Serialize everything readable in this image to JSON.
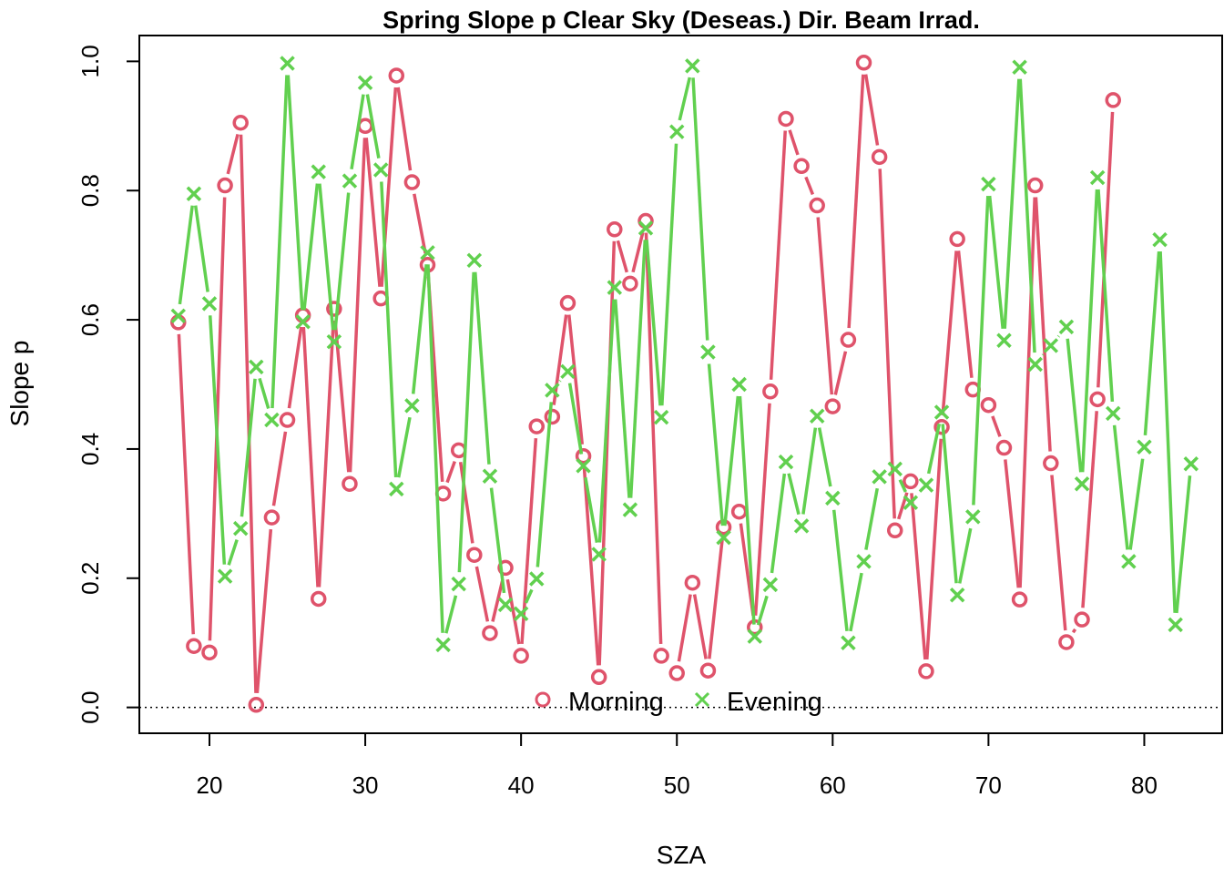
{
  "chart_data": {
    "type": "line",
    "title": "Spring Slope p Clear Sky (Deseas.) Dir. Beam Irrad.",
    "xlabel": "SZA",
    "ylabel": "Slope p",
    "xlim": [
      15.5,
      85
    ],
    "ylim": [
      -0.04,
      1.04
    ],
    "x_ticks": [
      "20",
      "30",
      "40",
      "50",
      "60",
      "70",
      "80"
    ],
    "y_ticks": [
      "0.0",
      "0.2",
      "0.4",
      "0.6",
      "0.8",
      "1.0"
    ],
    "reference_line": {
      "y": 0,
      "style": "dotted"
    },
    "legend": {
      "position": "bottom-center",
      "entries": [
        "Morning",
        "Evening"
      ]
    },
    "colors": {
      "Morning": "#DF536B",
      "Evening": "#61D04F"
    },
    "series": [
      {
        "name": "Morning",
        "marker": "circle",
        "x": [
          18,
          19,
          20,
          21,
          22,
          23,
          24,
          25,
          26,
          27,
          28,
          29,
          30,
          31,
          32,
          33,
          34,
          35,
          36,
          37,
          38,
          39,
          40,
          41,
          42,
          43,
          44,
          45,
          46,
          47,
          48,
          49,
          50,
          51,
          52,
          53,
          54,
          55,
          56,
          57,
          58,
          59,
          60,
          61,
          62,
          63,
          64,
          65,
          66,
          67,
          68,
          69,
          70,
          71,
          72,
          73,
          74,
          75,
          76,
          77,
          78
        ],
        "y": [
          0.596,
          0.095,
          0.085,
          0.808,
          0.905,
          0.004,
          0.294,
          0.445,
          0.607,
          0.168,
          0.617,
          0.346,
          0.9,
          0.633,
          0.978,
          0.813,
          0.685,
          0.331,
          0.398,
          0.236,
          0.115,
          0.216,
          0.08,
          0.435,
          0.45,
          0.626,
          0.389,
          0.047,
          0.74,
          0.656,
          0.753,
          0.08,
          0.053,
          0.193,
          0.057,
          0.279,
          0.303,
          0.124,
          0.489,
          0.911,
          0.838,
          0.777,
          0.466,
          0.569,
          0.998,
          0.852,
          0.274,
          0.35,
          0.056,
          0.434,
          0.725,
          0.492,
          0.468,
          0.402,
          0.167,
          0.808,
          0.378,
          0.101,
          0.136,
          0.477,
          0.94
        ]
      },
      {
        "name": "Evening",
        "marker": "cross",
        "x": [
          18,
          19,
          20,
          21,
          22,
          23,
          24,
          25,
          26,
          27,
          28,
          29,
          30,
          31,
          32,
          33,
          34,
          35,
          36,
          37,
          38,
          39,
          40,
          41,
          42,
          43,
          44,
          45,
          46,
          47,
          48,
          49,
          50,
          51,
          52,
          53,
          54,
          55,
          56,
          57,
          58,
          59,
          60,
          61,
          62,
          63,
          64,
          65,
          66,
          67,
          68,
          69,
          70,
          71,
          72,
          73,
          74,
          75,
          76,
          77,
          78,
          79,
          80,
          81,
          82,
          83
        ],
        "y": [
          0.606,
          0.795,
          0.625,
          0.203,
          0.277,
          0.527,
          0.445,
          0.997,
          0.597,
          0.829,
          0.566,
          0.815,
          0.967,
          0.832,
          0.338,
          0.467,
          0.704,
          0.097,
          0.191,
          0.692,
          0.358,
          0.159,
          0.145,
          0.199,
          0.491,
          0.52,
          0.374,
          0.237,
          0.65,
          0.306,
          0.742,
          0.449,
          0.891,
          0.993,
          0.55,
          0.263,
          0.5,
          0.11,
          0.19,
          0.38,
          0.281,
          0.451,
          0.324,
          0.1,
          0.226,
          0.357,
          0.369,
          0.317,
          0.344,
          0.457,
          0.174,
          0.295,
          0.81,
          0.568,
          0.991,
          0.531,
          0.56,
          0.589,
          0.346,
          0.82,
          0.455,
          0.226,
          0.403,
          0.724,
          0.128,
          0.377
        ]
      }
    ]
  }
}
